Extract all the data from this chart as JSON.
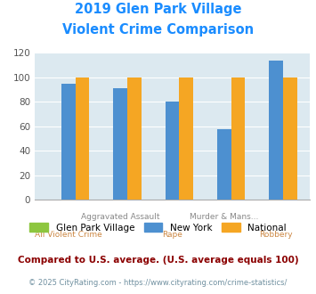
{
  "title_line1": "2019 Glen Park Village",
  "title_line2": "Violent Crime Comparison",
  "title_color": "#1a8cff",
  "categories": [
    "All Violent Crime",
    "Aggravated Assault",
    "Rape",
    "Murder & Mans...",
    "Robbery"
  ],
  "top_labels": [
    "",
    "Aggravated Assault",
    "",
    "Murder & Mans...",
    ""
  ],
  "bot_labels": [
    "All Violent Crime",
    "",
    "Rape",
    "",
    "Robbery"
  ],
  "glen_park": [
    0,
    0,
    0,
    0,
    0
  ],
  "new_york": [
    95,
    91,
    80,
    58,
    114
  ],
  "national": [
    100,
    100,
    100,
    100,
    100
  ],
  "glen_park_color": "#8dc63f",
  "new_york_color": "#4d90d0",
  "national_color": "#f5a623",
  "ylim": [
    0,
    120
  ],
  "yticks": [
    0,
    20,
    40,
    60,
    80,
    100,
    120
  ],
  "plot_bg_color": "#dce9f0",
  "fig_bg_color": "#ffffff",
  "legend_labels": [
    "Glen Park Village",
    "New York",
    "National"
  ],
  "footnote1": "Compared to U.S. average. (U.S. average equals 100)",
  "footnote2": "© 2025 CityRating.com - https://www.cityrating.com/crime-statistics/",
  "footnote1_color": "#8b0000",
  "footnote2_color": "#7090a0",
  "top_label_color": "#888888",
  "bot_label_color": "#cc8844"
}
